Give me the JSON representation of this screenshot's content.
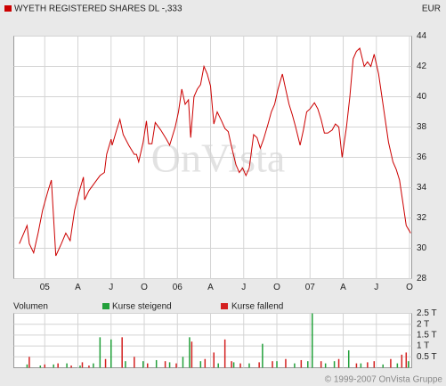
{
  "chart_data": [
    {
      "type": "line",
      "title": "WYETH REGISTERED SHARES DL -,333",
      "currency": "EUR",
      "watermark": "OnVista",
      "footer": "© 1999-2007 OnVista Gruppe",
      "color": "#cc0000",
      "grid": true,
      "x": [
        -2.3,
        -1.6,
        -1.4,
        -1.0,
        -0.6,
        -0.2,
        0.3,
        0.6,
        0.8,
        1.0,
        1.5,
        1.9,
        2.3,
        2.7,
        3.1,
        3.5,
        3.6,
        4.0,
        4.5,
        5.0,
        5.4,
        5.6,
        6.0,
        6.1,
        6.5,
        6.8,
        7.1,
        7.6,
        8.1,
        8.3,
        8.5,
        8.9,
        9.2,
        9.4,
        9.7,
        10.0,
        10.5,
        11.0,
        11.3,
        11.8,
        12.1,
        12.4,
        12.7,
        13.0,
        13.2,
        13.5,
        13.8,
        14.1,
        14.4,
        14.7,
        15.0,
        15.3,
        15.6,
        16.0,
        16.3,
        16.6,
        16.9,
        17.3,
        17.6,
        17.9,
        18.2,
        18.5,
        18.9,
        19.2,
        19.5,
        19.8,
        20.2,
        20.5,
        20.8,
        21.1,
        21.5,
        21.8,
        22.1,
        22.4,
        22.7,
        23.1,
        23.4,
        23.7,
        24.0,
        24.4,
        24.7,
        25.0,
        25.3,
        25.6,
        26.0,
        26.3,
        26.6,
        26.9,
        27.3,
        27.6,
        27.9,
        28.2,
        28.5,
        28.9,
        29.2,
        29.5,
        29.8,
        30.2,
        30.5,
        30.8,
        31.1,
        31.5,
        31.8,
        32.1,
        32.4,
        32.7,
        33.1
      ],
      "values": [
        30.3,
        31.5,
        30.3,
        29.7,
        31,
        32.5,
        33.8,
        34.5,
        32,
        29.5,
        30.3,
        31,
        30.5,
        32.5,
        33.7,
        34.7,
        33.2,
        33.8,
        34.3,
        34.8,
        35,
        36.2,
        37.2,
        36.8,
        37.8,
        38.5,
        37.5,
        36.8,
        36.2,
        36.2,
        35.7,
        37,
        38.4,
        36.9,
        36.9,
        38.3,
        37.8,
        37.2,
        36.8,
        38,
        39,
        40.5,
        39.5,
        39.8,
        37.3,
        40,
        40.5,
        40.8,
        42,
        41.5,
        40.7,
        38.2,
        39,
        38.4,
        37.9,
        37.7,
        36.7,
        35.5,
        35,
        35.3,
        34.8,
        35.3,
        37.5,
        37.3,
        36.6,
        37.2,
        38.2,
        39,
        39.5,
        40.5,
        41.5,
        40.5,
        39.5,
        38.8,
        38,
        36.8,
        37.8,
        39,
        39.2,
        39.6,
        39.2,
        38.5,
        37.6,
        37.6,
        37.8,
        38.2,
        38,
        36,
        38,
        40,
        42.5,
        43,
        43.2,
        42,
        42.3,
        42,
        42.8,
        41.5,
        40,
        38.5,
        37,
        35.7,
        35.2,
        34.5,
        33,
        31.5,
        31
      ],
      "xlim": [
        -2.8,
        33.2
      ],
      "xticks": [
        {
          "value": 0,
          "label": "05"
        },
        {
          "value": 3,
          "label": "A"
        },
        {
          "value": 6,
          "label": "J"
        },
        {
          "value": 9,
          "label": "O"
        },
        {
          "value": 12,
          "label": "06"
        },
        {
          "value": 15,
          "label": "A"
        },
        {
          "value": 18,
          "label": "J"
        },
        {
          "value": 21,
          "label": "O"
        },
        {
          "value": 24,
          "label": "07"
        },
        {
          "value": 27,
          "label": "A"
        },
        {
          "value": 30,
          "label": "J"
        },
        {
          "value": 33,
          "label": "O"
        }
      ],
      "ylim": [
        28,
        44
      ],
      "yticks": [
        28,
        30,
        32,
        34,
        36,
        38,
        40,
        42,
        44
      ]
    },
    {
      "type": "bar",
      "title": "Volumen",
      "grid": true,
      "series": [
        {
          "name": "Kurse steigend",
          "color": "#22a03a",
          "x": [
            -1.6,
            -0.4,
            0.8,
            2.0,
            3.2,
            4.4,
            5.0,
            6.0,
            7.3,
            8.9,
            10.1,
            11.3,
            12.5,
            13.1,
            14.1,
            15.7,
            17.1,
            18.5,
            19.7,
            21.0,
            22.6,
            23.8,
            24.2,
            25.4,
            26.2,
            27.5,
            28.6,
            30.6,
            31.9,
            32.9
          ],
          "values": [
            0.15,
            0.1,
            0.15,
            0.2,
            0.1,
            0.2,
            1.4,
            1.3,
            0.3,
            0.3,
            0.35,
            0.25,
            0.5,
            1.4,
            0.3,
            0.2,
            0.25,
            0.2,
            1.1,
            0.3,
            0.2,
            0.3,
            2.5,
            0.2,
            0.3,
            0.8,
            0.2,
            0.15,
            0.2,
            0.3
          ]
        },
        {
          "name": "Kurse fallend",
          "color": "#d42020",
          "x": [
            -1.4,
            0,
            1.2,
            2.4,
            3.4,
            4.0,
            5.5,
            7.0,
            8.1,
            9.3,
            10.9,
            11.9,
            13.3,
            14.5,
            15.3,
            16.3,
            16.9,
            17.7,
            19.4,
            20.6,
            21.8,
            23.2,
            25.0,
            26.6,
            28.2,
            29.2,
            29.8,
            31.3,
            32.3,
            32.7
          ],
          "values": [
            0.5,
            0.15,
            0.2,
            0.1,
            0.25,
            0.1,
            0.4,
            1.4,
            0.5,
            0.2,
            0.3,
            0.2,
            1.2,
            0.4,
            0.7,
            1.3,
            0.3,
            0.2,
            0.25,
            0.3,
            0.4,
            0.35,
            0.3,
            0.4,
            0.2,
            0.25,
            0.3,
            0.4,
            0.6,
            0.7
          ]
        }
      ],
      "ylim": [
        0,
        2.5
      ],
      "yticks": [
        {
          "value": 0.5,
          "label": "0.5 T"
        },
        {
          "value": 1,
          "label": "1 T"
        },
        {
          "value": 1.5,
          "label": "1.5 T"
        },
        {
          "value": 2,
          "label": "2 T"
        },
        {
          "value": 2.5,
          "label": "2.5 T"
        }
      ]
    }
  ]
}
